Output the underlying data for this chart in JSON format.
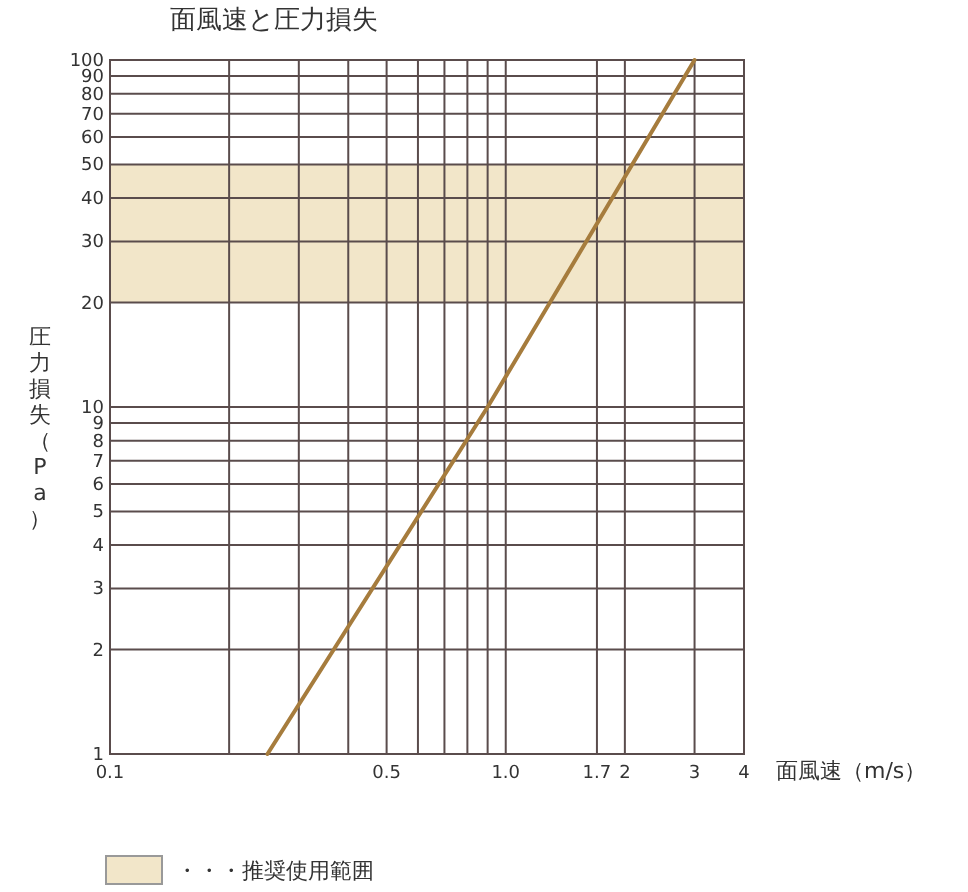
{
  "chart_data": {
    "type": "line",
    "title": "面風速と圧力損失",
    "xlabel": "面風速（m/s）",
    "ylabel": "圧力損失（Pa）",
    "log": "xy",
    "xlim": [
      0.1,
      4
    ],
    "ylim": [
      1,
      100
    ],
    "xticks": [
      0.1,
      {
        "value": 0.2,
        "label": null
      },
      {
        "value": 0.3,
        "label": null
      },
      {
        "value": 0.4,
        "label": null
      },
      0.5,
      {
        "value": 0.6,
        "label": null
      },
      {
        "value": 0.7,
        "label": null
      },
      {
        "value": 0.8,
        "label": null
      },
      {
        "value": 0.9,
        "label": null
      },
      {
        "value": 1,
        "label": "1.0"
      },
      1.7,
      2,
      3,
      4
    ],
    "yticks": [
      1,
      2,
      3,
      4,
      5,
      6,
      7,
      8,
      9,
      10,
      20,
      30,
      40,
      50,
      60,
      70,
      80,
      90,
      100
    ],
    "grid": true,
    "marker": "none",
    "line_style": "solid",
    "legend": "bottom left",
    "bands": [
      {
        "axis": "y",
        "from": 20,
        "to": 50,
        "label": "・・・推奨使用範囲",
        "color": "#f2e6c9"
      }
    ],
    "series": [
      {
        "color": "#a67c3d",
        "x": [
          0.25,
          0.9,
          3
        ],
        "values": [
          1,
          10,
          100
        ]
      }
    ]
  }
}
